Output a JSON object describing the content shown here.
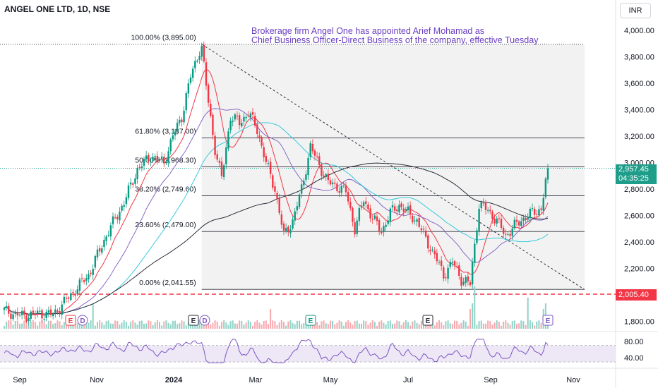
{
  "header": {
    "symbol": "ANGEL ONE LTD, 1D, NSE",
    "currency": "INR"
  },
  "news": {
    "line1": "Brokerage firm Angel One  has appointed Arief Mohamad as",
    "line2": "Chief Business Officer-Direct Business of the company, effective Tuesday"
  },
  "price_tags": {
    "last": "2,957.45",
    "countdown": "04:35:25",
    "level": "2,005.40"
  },
  "colors": {
    "up": "#089981",
    "down": "#f23645",
    "news": "#6a3fc0",
    "fib_zone": "#f2f2f2"
  },
  "chart_data": {
    "type": "candlestick",
    "x_ticks": [
      "Sep",
      "Nov",
      "2024",
      "Mar",
      "May",
      "Jul",
      "Sep",
      "Nov"
    ],
    "y_ticks": [
      "4,000.00",
      "3,800.00",
      "3,600.00",
      "3,400.00",
      "3,200.00",
      "3,000.00",
      "2,800.00",
      "2,600.00",
      "2,400.00",
      "2,200.00",
      "1,800.00"
    ],
    "ylim": [
      1780,
      4050
    ],
    "fib_levels": [
      {
        "label": "100.00% (3,895.00)",
        "value": 3895
      },
      {
        "label": "61.80% (3,187.00)",
        "value": 3187
      },
      {
        "label": "50.00% (2,968.30)",
        "value": 2968.3
      },
      {
        "label": "38.20% (2,749.60)",
        "value": 2749.6
      },
      {
        "label": "23.60% (2,479.00)",
        "value": 2479
      },
      {
        "label": "0.00% (2,041.55)",
        "value": 2041.55
      }
    ],
    "horizontal_line": 2005.4,
    "trendline": [
      [
        0.0,
        3895
      ],
      [
        1.0,
        2040
      ]
    ],
    "key_points": [
      {
        "x": 0,
        "y": 1880
      },
      {
        "x": 8,
        "y": 1840
      },
      {
        "x": 16,
        "y": 1860
      },
      {
        "x": 22,
        "y": 1850
      },
      {
        "x": 30,
        "y": 2000
      },
      {
        "x": 38,
        "y": 2150
      },
      {
        "x": 46,
        "y": 2450
      },
      {
        "x": 54,
        "y": 2700
      },
      {
        "x": 60,
        "y": 2950
      },
      {
        "x": 66,
        "y": 3050
      },
      {
        "x": 72,
        "y": 3000
      },
      {
        "x": 76,
        "y": 3200
      },
      {
        "x": 80,
        "y": 3350
      },
      {
        "x": 84,
        "y": 3650
      },
      {
        "x": 88,
        "y": 3850
      },
      {
        "x": 89,
        "y": 3870
      },
      {
        "x": 91,
        "y": 3580
      },
      {
        "x": 95,
        "y": 3100
      },
      {
        "x": 98,
        "y": 2880
      },
      {
        "x": 102,
        "y": 3350
      },
      {
        "x": 106,
        "y": 3300
      },
      {
        "x": 110,
        "y": 3380
      },
      {
        "x": 114,
        "y": 3250
      },
      {
        "x": 118,
        "y": 3000
      },
      {
        "x": 122,
        "y": 2800
      },
      {
        "x": 126,
        "y": 2450
      },
      {
        "x": 130,
        "y": 2560
      },
      {
        "x": 134,
        "y": 2800
      },
      {
        "x": 138,
        "y": 3120
      },
      {
        "x": 142,
        "y": 2980
      },
      {
        "x": 146,
        "y": 2850
      },
      {
        "x": 150,
        "y": 2820
      },
      {
        "x": 154,
        "y": 2780
      },
      {
        "x": 158,
        "y": 2500
      },
      {
        "x": 162,
        "y": 2720
      },
      {
        "x": 166,
        "y": 2580
      },
      {
        "x": 170,
        "y": 2480
      },
      {
        "x": 174,
        "y": 2620
      },
      {
        "x": 178,
        "y": 2680
      },
      {
        "x": 182,
        "y": 2620
      },
      {
        "x": 186,
        "y": 2560
      },
      {
        "x": 190,
        "y": 2420
      },
      {
        "x": 194,
        "y": 2300
      },
      {
        "x": 198,
        "y": 2150
      },
      {
        "x": 202,
        "y": 2250
      },
      {
        "x": 206,
        "y": 2120
      },
      {
        "x": 210,
        "y": 2080
      },
      {
        "x": 214,
        "y": 2680
      },
      {
        "x": 218,
        "y": 2640
      },
      {
        "x": 222,
        "y": 2560
      },
      {
        "x": 226,
        "y": 2450
      },
      {
        "x": 230,
        "y": 2520
      },
      {
        "x": 234,
        "y": 2580
      },
      {
        "x": 238,
        "y": 2620
      },
      {
        "x": 242,
        "y": 2650
      },
      {
        "x": 245,
        "y": 2957
      }
    ],
    "rsi_ticks": [
      "80.00",
      "40.00"
    ],
    "rsi_ylim": [
      25,
      90
    ]
  }
}
